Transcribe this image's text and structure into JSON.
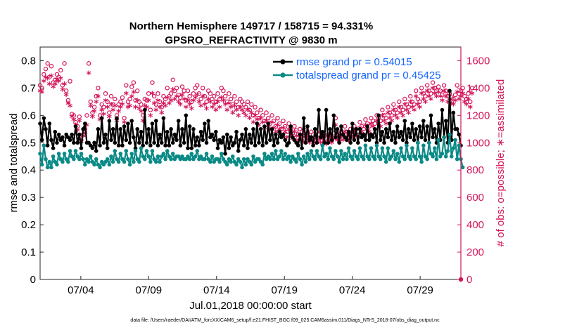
{
  "chart_data": {
    "type": "line",
    "title": "Northern Hemisphere 149717 / 158715 = 94.331%",
    "subtitle": "GPSRO_REFRACTIVITY @ 9830 m",
    "xlabel": "Jul.01,2018 00:00:00 start",
    "ylabel_left": "rmse and totalspread",
    "ylabel_right": "# of obs: o=possible; ∗=assimilated",
    "ylim_left": [
      0,
      0.85
    ],
    "ylim_right": [
      0,
      1700
    ],
    "xlim": [
      1,
      32
    ],
    "x_tick_values": [
      4,
      9,
      14,
      19,
      24,
      29
    ],
    "x_tick_labels": [
      "07/04",
      "07/09",
      "07/14",
      "07/19",
      "07/24",
      "07/29"
    ],
    "y_left_ticks": [
      "0",
      "0.1",
      "0.2",
      "0.3",
      "0.4",
      "0.5",
      "0.6",
      "0.7",
      "0.8"
    ],
    "y_right_ticks": [
      "0",
      "200",
      "400",
      "600",
      "800",
      "1000",
      "1200",
      "1400",
      "1600"
    ],
    "footer": "data file: /Users/raeder/DAI/ATM_forcXX/CAM6_setup/f.e21.FHIST_BGC.f09_025.CAM6assim.011/Diags_NTrS_2018-07/obs_diag_output.nc",
    "legend": [
      {
        "name": "rmse grand pr = 0.54015",
        "color": "#000000",
        "marker": "filled-circle"
      },
      {
        "name": "totalspread grand pr = 0.45425",
        "color": "#0a8a86",
        "marker": "filled-circle"
      }
    ],
    "colors": {
      "rmse": "#000000",
      "spread": "#0a8a86",
      "obs": "#d4145a"
    },
    "series": [
      {
        "name": "rmse",
        "axis": "left",
        "color": "#000000",
        "values": [
          0.57,
          0.51,
          0.59,
          0.55,
          0.49,
          0.57,
          0.51,
          0.48,
          0.54,
          0.5,
          0.53,
          0.51,
          0.52,
          0.49,
          0.53,
          0.52,
          0.51,
          0.53,
          0.5,
          0.56,
          0.5,
          0.53,
          0.48,
          0.55,
          0.57,
          0.5,
          0.5,
          0.49,
          0.48,
          0.5,
          0.47,
          0.55,
          0.49,
          0.59,
          0.5,
          0.53,
          0.48,
          0.58,
          0.51,
          0.55,
          0.5,
          0.59,
          0.49,
          0.55,
          0.49,
          0.56,
          0.51,
          0.57,
          0.5,
          0.58,
          0.52,
          0.48,
          0.55,
          0.5,
          0.54,
          0.49,
          0.62,
          0.5,
          0.55,
          0.49,
          0.57,
          0.5,
          0.58,
          0.49,
          0.53,
          0.5,
          0.59,
          0.49,
          0.54,
          0.49,
          0.55,
          0.5,
          0.53,
          0.51,
          0.58,
          0.49,
          0.55,
          0.5,
          0.6,
          0.48,
          0.56,
          0.48,
          0.55,
          0.49,
          0.52,
          0.49,
          0.54,
          0.51,
          0.57,
          0.5,
          0.58,
          0.52,
          0.53,
          0.51,
          0.54,
          0.48,
          0.51,
          0.5,
          0.52,
          0.46,
          0.53,
          0.48,
          0.52,
          0.49,
          0.5,
          0.54,
          0.47,
          0.51,
          0.53,
          0.49,
          0.55,
          0.48,
          0.53,
          0.5,
          0.55,
          0.49,
          0.57,
          0.5,
          0.55,
          0.49,
          0.56,
          0.5,
          0.57,
          0.51,
          0.55,
          0.49,
          0.53,
          0.5,
          0.54,
          0.52,
          0.53,
          0.51,
          0.49,
          0.5,
          0.56,
          0.52,
          0.51,
          0.5,
          0.49,
          0.53,
          0.48,
          0.59,
          0.5,
          0.56,
          0.51,
          0.52,
          0.49,
          0.55,
          0.5,
          0.62,
          0.52,
          0.54,
          0.5,
          0.62,
          0.5,
          0.55,
          0.51,
          0.6,
          0.52,
          0.55,
          0.5,
          0.56,
          0.53,
          0.52,
          0.51,
          0.54,
          0.5,
          0.57,
          0.51,
          0.55,
          0.5,
          0.55,
          0.52,
          0.53,
          0.51,
          0.56,
          0.51,
          0.53,
          0.52,
          0.55,
          0.5,
          0.6,
          0.51,
          0.54,
          0.5,
          0.55,
          0.52,
          0.57,
          0.51,
          0.54,
          0.5,
          0.56,
          0.52,
          0.54,
          0.51,
          0.58,
          0.5,
          0.55,
          0.52,
          0.57,
          0.51,
          0.55,
          0.5,
          0.56,
          0.52,
          0.58,
          0.51,
          0.56,
          0.5,
          0.6,
          0.52,
          0.55,
          0.5,
          0.57,
          0.51,
          0.62,
          0.52,
          0.58,
          0.5,
          0.69,
          0.51,
          0.61,
          0.55,
          0.55,
          0.53,
          0.49
        ]
      },
      {
        "name": "totalspread",
        "axis": "left",
        "color": "#0a8a86",
        "values": [
          0.46,
          0.42,
          0.49,
          0.44,
          0.41,
          0.43,
          0.41,
          0.45,
          0.43,
          0.42,
          0.46,
          0.44,
          0.43,
          0.46,
          0.44,
          0.43,
          0.47,
          0.45,
          0.44,
          0.47,
          0.45,
          0.44,
          0.46,
          0.44,
          0.42,
          0.44,
          0.43,
          0.45,
          0.43,
          0.42,
          0.44,
          0.42,
          0.41,
          0.43,
          0.42,
          0.43,
          0.44,
          0.42,
          0.45,
          0.43,
          0.47,
          0.44,
          0.43,
          0.46,
          0.44,
          0.43,
          0.47,
          0.44,
          0.42,
          0.46,
          0.43,
          0.47,
          0.44,
          0.43,
          0.48,
          0.45,
          0.44,
          0.47,
          0.45,
          0.43,
          0.47,
          0.44,
          0.43,
          0.45,
          0.43,
          0.45,
          0.46,
          0.44,
          0.47,
          0.45,
          0.44,
          0.46,
          0.44,
          0.45,
          0.45,
          0.44,
          0.45,
          0.44,
          0.44,
          0.45,
          0.44,
          0.46,
          0.44,
          0.45,
          0.47,
          0.44,
          0.45,
          0.44,
          0.44,
          0.46,
          0.44,
          0.43,
          0.45,
          0.43,
          0.44,
          0.44,
          0.43,
          0.46,
          0.44,
          0.43,
          0.42,
          0.44,
          0.43,
          0.45,
          0.43,
          0.42,
          0.44,
          0.43,
          0.41,
          0.44,
          0.42,
          0.44,
          0.43,
          0.42,
          0.45,
          0.43,
          0.44,
          0.44,
          0.43,
          0.42,
          0.46,
          0.44,
          0.45,
          0.44,
          0.46,
          0.44,
          0.47,
          0.44,
          0.45,
          0.47,
          0.44,
          0.46,
          0.44,
          0.45,
          0.43,
          0.45,
          0.44,
          0.43,
          0.46,
          0.44,
          0.42,
          0.45,
          0.43,
          0.46,
          0.44,
          0.47,
          0.45,
          0.44,
          0.47,
          0.45,
          0.44,
          0.49,
          0.45,
          0.46,
          0.44,
          0.48,
          0.45,
          0.44,
          0.47,
          0.45,
          0.43,
          0.47,
          0.44,
          0.46,
          0.44,
          0.48,
          0.45,
          0.44,
          0.47,
          0.45,
          0.44,
          0.48,
          0.45,
          0.44,
          0.49,
          0.45,
          0.44,
          0.48,
          0.45,
          0.44,
          0.49,
          0.45,
          0.44,
          0.48,
          0.45,
          0.43,
          0.48,
          0.44,
          0.45,
          0.47,
          0.44,
          0.46,
          0.43,
          0.48,
          0.45,
          0.44,
          0.49,
          0.45,
          0.44,
          0.48,
          0.45,
          0.44,
          0.5,
          0.45,
          0.43,
          0.49,
          0.45,
          0.44,
          0.5,
          0.46,
          0.45,
          0.48,
          0.44,
          0.51,
          0.45,
          0.46,
          0.52,
          0.45,
          0.47,
          0.53,
          0.45,
          0.48,
          0.51,
          0.44,
          0.49,
          0.44,
          0.41
        ]
      },
      {
        "name": "obs_possible",
        "axis": "right",
        "color": "#d4145a",
        "marker": "o",
        "values": [
          1420,
          1400,
          1500,
          1540,
          1580,
          1480,
          1560,
          1440,
          1460,
          1500,
          1480,
          1530,
          1420,
          1580,
          1380,
          1310,
          1450,
          1210,
          1200,
          1150,
          1120,
          1190,
          1020,
          1060,
          1100,
          1200,
          1580,
          1300,
          1220,
          1260,
          1340,
          1400,
          1200,
          1280,
          1260,
          1360,
          1300,
          1220,
          1340,
          1280,
          1320,
          1200,
          1280,
          1300,
          1330,
          1180,
          1420,
          1300,
          1320,
          1410,
          1440,
          1310,
          1380,
          1300,
          1280,
          1200,
          1320,
          1310,
          1360,
          1240,
          1440,
          1340,
          1280,
          1360,
          1300,
          1260,
          1340,
          1320,
          1400,
          1340,
          1360,
          1460,
          1380,
          1400,
          1350,
          1330,
          1410,
          1380,
          1310,
          1380,
          1340,
          1300,
          1360,
          1400,
          1420,
          1360,
          1320,
          1400,
          1340,
          1300,
          1380,
          1360,
          1320,
          1340,
          1300,
          1360,
          1320,
          1400,
          1380,
          1340,
          1300,
          1360,
          1320,
          1280,
          1340,
          1300,
          1260,
          1320,
          1300,
          1280,
          1260,
          1300,
          1240,
          1280,
          1200,
          1260,
          1220,
          1180,
          1240,
          1200,
          1160,
          1220,
          1180,
          1140,
          1200,
          1160,
          1120,
          1180,
          1140,
          1100,
          1160,
          1120,
          1080,
          1140,
          1100,
          1070,
          1120,
          1090,
          1060,
          1100,
          1080,
          1050,
          1090,
          1070,
          1040,
          1080,
          1060,
          1040,
          1080,
          1060,
          1040,
          1070,
          1050,
          1030,
          1060,
          1050,
          1040,
          1070,
          1180,
          1060,
          1050,
          1080,
          1060,
          1120,
          1080,
          1060,
          1100,
          1080,
          1120,
          1100,
          1080,
          1150,
          1120,
          1100,
          1170,
          1140,
          1120,
          1180,
          1160,
          1140,
          1200,
          1180,
          1160,
          1240,
          1200,
          1180,
          1260,
          1220,
          1200,
          1280,
          1240,
          1220,
          1300,
          1260,
          1240,
          1320,
          1280,
          1260,
          1340,
          1300,
          1280,
          1380,
          1320,
          1300,
          1400,
          1360,
          1340,
          1420,
          1380,
          1360,
          1440,
          1400,
          1380,
          1410,
          1380,
          1350,
          1420,
          1380,
          1340,
          1360,
          1330,
          1320,
          1350,
          1420,
          1360,
          1380,
          1400,
          1340,
          1320,
          1360,
          1300,
          1400
        ]
      },
      {
        "name": "obs_assimilated",
        "axis": "right",
        "color": "#d4145a",
        "marker": "*",
        "values": [
          1370,
          1360,
          1440,
          1470,
          1460,
          1420,
          1480,
          1400,
          1420,
          1450,
          1440,
          1460,
          1380,
          1420,
          1340,
          1280,
          1260,
          1180,
          1160,
          1120,
          1080,
          1150,
          1000,
          1040,
          1060,
          1120,
          1500,
          1260,
          1180,
          1220,
          1290,
          1330,
          1160,
          1230,
          1200,
          1300,
          1250,
          1180,
          1270,
          1230,
          1260,
          1150,
          1220,
          1250,
          1270,
          1140,
          1350,
          1250,
          1260,
          1330,
          1360,
          1250,
          1300,
          1240,
          1220,
          1150,
          1260,
          1250,
          1300,
          1190,
          1350,
          1280,
          1230,
          1300,
          1250,
          1210,
          1280,
          1260,
          1320,
          1280,
          1300,
          1380,
          1310,
          1330,
          1290,
          1270,
          1340,
          1310,
          1250,
          1300,
          1270,
          1240,
          1300,
          1320,
          1340,
          1290,
          1260,
          1330,
          1270,
          1240,
          1310,
          1290,
          1250,
          1270,
          1230,
          1290,
          1250,
          1320,
          1300,
          1270,
          1230,
          1280,
          1250,
          1210,
          1260,
          1230,
          1190,
          1250,
          1230,
          1210,
          1190,
          1230,
          1170,
          1210,
          1140,
          1190,
          1160,
          1120,
          1170,
          1140,
          1100,
          1150,
          1120,
          1090,
          1140,
          1100,
          1070,
          1120,
          1090,
          1050,
          1100,
          1070,
          1030,
          1090,
          1050,
          1020,
          1070,
          1040,
          1010,
          1050,
          1030,
          1000,
          1040,
          1020,
          990,
          1030,
          1010,
          990,
          1030,
          1010,
          990,
          1020,
          1000,
          980,
          1010,
          1000,
          990,
          1020,
          1120,
          1010,
          1000,
          1030,
          1010,
          1070,
          1030,
          1010,
          1050,
          1030,
          1070,
          1050,
          1030,
          1100,
          1070,
          1050,
          1120,
          1090,
          1070,
          1130,
          1110,
          1090,
          1150,
          1130,
          1110,
          1190,
          1150,
          1130,
          1210,
          1170,
          1150,
          1230,
          1190,
          1170,
          1250,
          1210,
          1190,
          1270,
          1230,
          1210,
          1290,
          1250,
          1230,
          1330,
          1270,
          1250,
          1350,
          1310,
          1290,
          1370,
          1330,
          1310,
          1390,
          1350,
          1330,
          1360,
          1330,
          1300,
          1370,
          1330,
          1290,
          1310,
          1280,
          1270,
          1300,
          1360,
          1310,
          1330,
          1350,
          1290,
          1270,
          1310,
          1250,
          1350
        ]
      }
    ]
  }
}
